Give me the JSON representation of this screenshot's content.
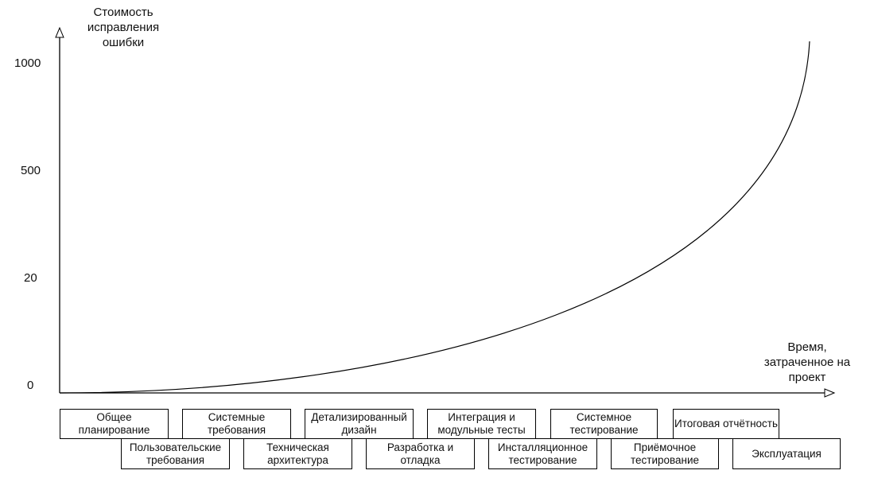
{
  "y_axis": {
    "label": "Стоимость исправления ошибки",
    "ticks": [
      "1000",
      "500",
      "20",
      "0"
    ]
  },
  "x_axis": {
    "label": "Время, затраченное на проект"
  },
  "phases": {
    "top_row": [
      "Общее планирование",
      "Системные требования",
      "Детализированный дизайн",
      "Интеграция и модульные тесты",
      "Системное тестирование",
      "Итоговая отчётность"
    ],
    "bottom_row": [
      "Пользовательские требования",
      "Техническая архитектура",
      "Разработка и отладка",
      "Инсталляционное тестирование",
      "Приёмочное тестирование",
      "Эксплуатация"
    ]
  },
  "colors": {
    "line": "#000000",
    "text": "#111111"
  }
}
